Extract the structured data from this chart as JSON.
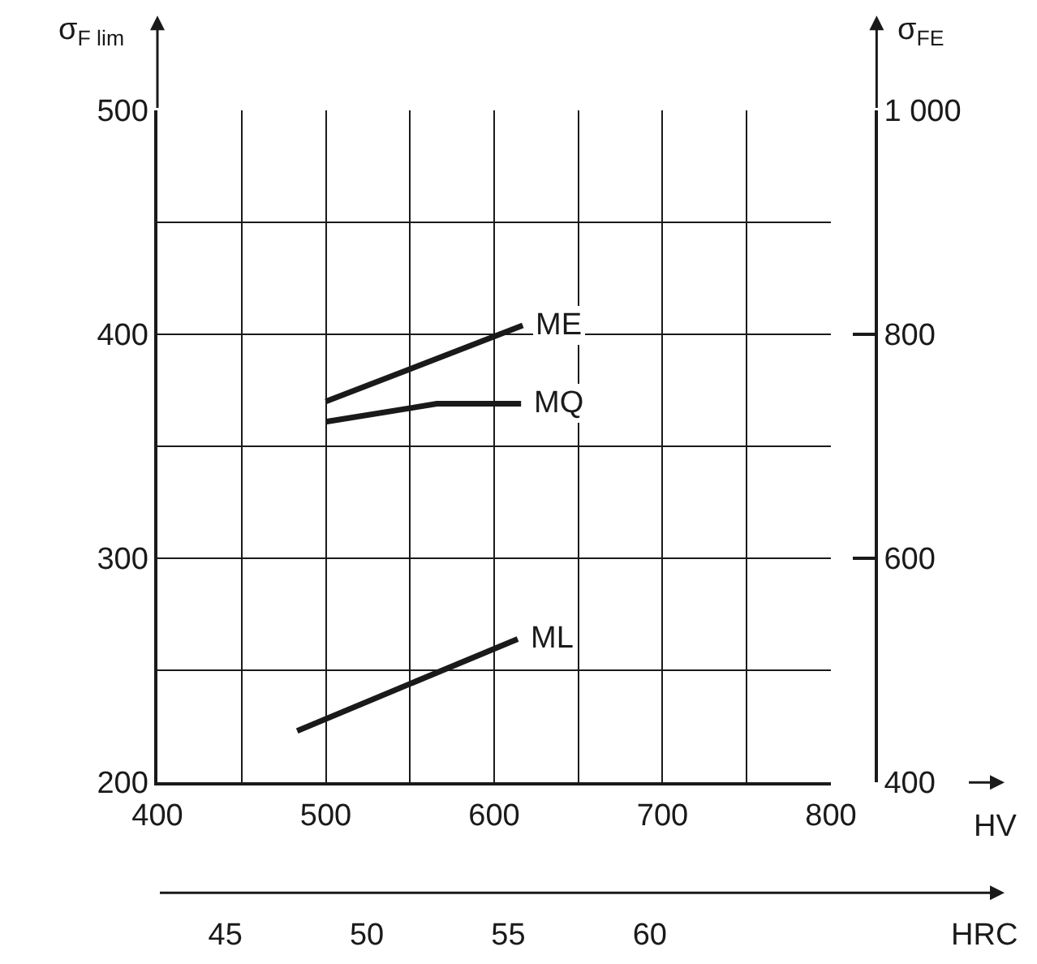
{
  "chart_data": {
    "type": "line",
    "xlabel": "HV",
    "ylabel": "σ$_{F lim}$",
    "y2label": "σ$_{FE}$",
    "x2label": "HRC",
    "xlim": [
      400,
      800
    ],
    "xticks": [
      400,
      {
        "value": 450,
        "label": null
      },
      500,
      {
        "value": 550,
        "label": null
      },
      600,
      {
        "value": 650,
        "label": null
      },
      700,
      {
        "value": 750,
        "label": null
      },
      800
    ],
    "ylim": [
      200,
      500
    ],
    "yticks": [
      200,
      {
        "value": 250,
        "label": null
      },
      300,
      {
        "value": 350,
        "label": null
      },
      400,
      {
        "value": 450,
        "label": null
      },
      500
    ],
    "y2lim": [
      400,
      1000
    ],
    "y2ticks": [
      400,
      600,
      800,
      {
        "value": 1000,
        "label": "1 000"
      }
    ],
    "x2lim": [
      42.6,
      66.4
    ],
    "x2ticks": [
      45,
      50,
      55,
      60
    ],
    "grid": true,
    "legend": false,
    "marker": "none",
    "line_style": "solid",
    "series": [
      {
        "name": "ME",
        "color": "#1a1a1a",
        "x": [
          500,
          617
        ],
        "values": [
          370,
          404
        ]
      },
      {
        "name": "MQ",
        "color": "#1a1a1a",
        "x": [
          500,
          566,
          616
        ],
        "values": [
          361,
          369,
          369
        ]
      },
      {
        "name": "ML",
        "color": "#1a1a1a",
        "x": [
          483,
          614
        ],
        "values": [
          223,
          264
        ]
      }
    ]
  }
}
